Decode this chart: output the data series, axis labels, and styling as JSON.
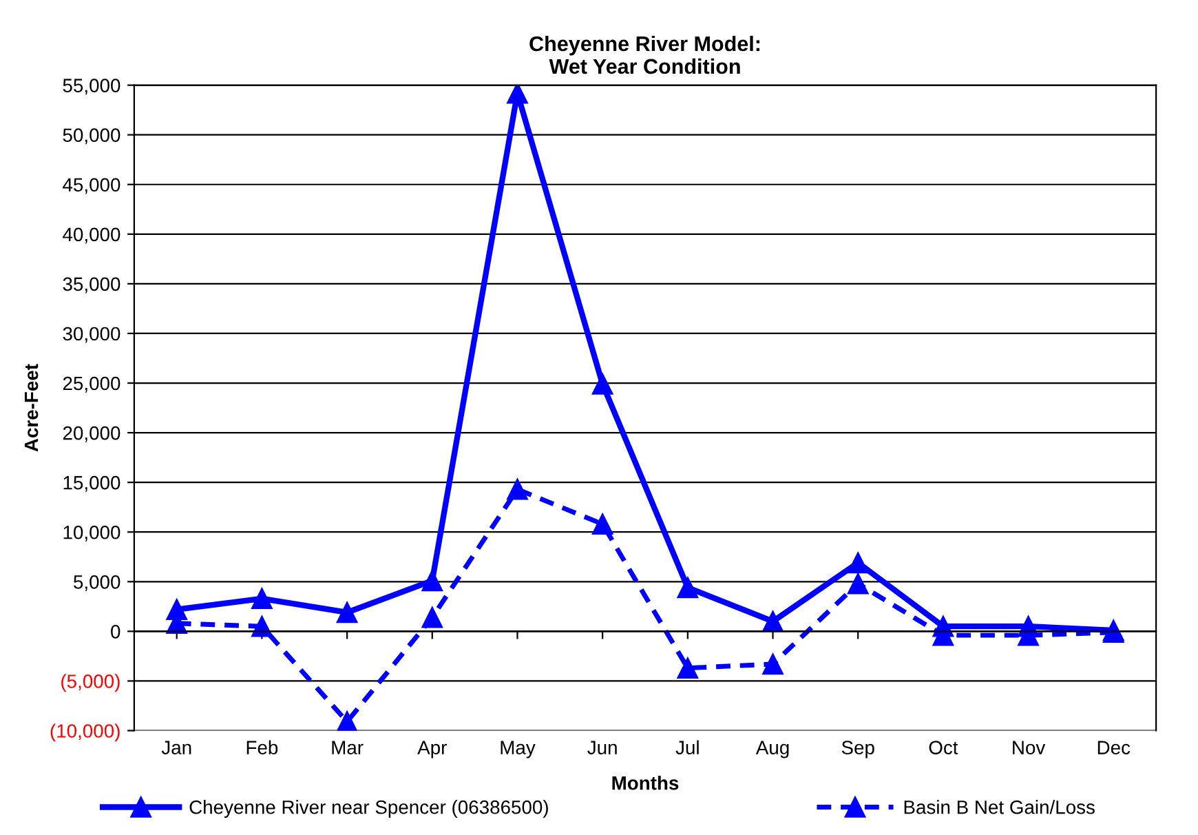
{
  "chart_data": {
    "type": "line",
    "title": "Cheyenne River Model:\nWet Year Condition",
    "xlabel": "Months",
    "ylabel": "Acre-Feet",
    "categories": [
      "Jan",
      "Feb",
      "Mar",
      "Apr",
      "May",
      "Jun",
      "Jul",
      "Aug",
      "Sep",
      "Oct",
      "Nov",
      "Dec"
    ],
    "series": [
      {
        "name": "Cheyenne River near Spencer (06386500)",
        "color": "#0000ff",
        "line_style": "solid",
        "values": [
          2200,
          3300,
          1900,
          5100,
          54200,
          24900,
          4400,
          1000,
          6900,
          500,
          500,
          100
        ]
      },
      {
        "name": "Basin B Net Gain/Loss",
        "color": "#0000ff",
        "line_style": "dashed",
        "values": [
          800,
          500,
          -9100,
          1400,
          14300,
          10800,
          -3700,
          -3300,
          4800,
          -400,
          -400,
          -100
        ]
      }
    ],
    "marker": "triangle",
    "ylim": [
      -10000,
      55000
    ],
    "yticks": [
      {
        "value": -10000,
        "label": "(10,000)"
      },
      {
        "value": -5000,
        "label": "(5,000)"
      },
      {
        "value": 0,
        "label": "0"
      },
      {
        "value": 5000,
        "label": "5,000"
      },
      {
        "value": 10000,
        "label": "10,000"
      },
      {
        "value": 15000,
        "label": "15,000"
      },
      {
        "value": 20000,
        "label": "20,000"
      },
      {
        "value": 25000,
        "label": "25,000"
      },
      {
        "value": 30000,
        "label": "30,000"
      },
      {
        "value": 35000,
        "label": "35,000"
      },
      {
        "value": 40000,
        "label": "40,000"
      },
      {
        "value": 45000,
        "label": "45,000"
      },
      {
        "value": 50000,
        "label": "50,000"
      },
      {
        "value": 55000,
        "label": "55,000"
      }
    ],
    "grid": "y",
    "legend": "bottom"
  }
}
